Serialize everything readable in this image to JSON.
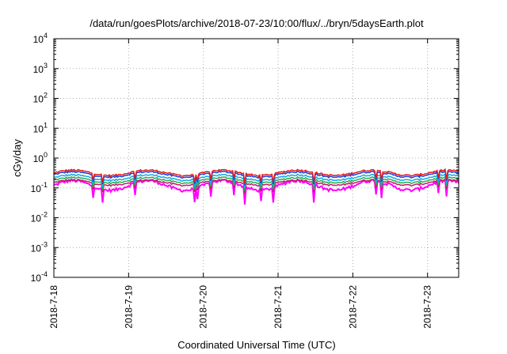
{
  "chart_data": {
    "type": "line",
    "title": "/data/run/goesPlots/archive/2018-07-23/10:00/flux/../bryn/5daysEarth.plot",
    "xlabel": "Coordinated Universal Time (UTC)",
    "ylabel": "cGy/day",
    "yscale": "log",
    "ylim": [
      0.0001,
      10000
    ],
    "xlim": [
      "2018-07-18",
      "2018-07-23 10:00"
    ],
    "grid": true,
    "y_ticks": [
      {
        "base": "10",
        "exp": "-4"
      },
      {
        "base": "10",
        "exp": "-3"
      },
      {
        "base": "10",
        "exp": "-2"
      },
      {
        "base": "10",
        "exp": "-1"
      },
      {
        "base": "10",
        "exp": "0"
      },
      {
        "base": "10",
        "exp": "1"
      },
      {
        "base": "10",
        "exp": "2"
      },
      {
        "base": "10",
        "exp": "3"
      },
      {
        "base": "10",
        "exp": "4"
      }
    ],
    "x_ticks": [
      "2018-7-18",
      "2018-7-19",
      "2018-7-20",
      "2018-7-21",
      "2018-7-22",
      "2018-7-23"
    ],
    "series": [
      {
        "color": "#e41a1c",
        "level": 0.32
      },
      {
        "color": "#1f3fd6",
        "level": 0.28
      },
      {
        "color": "#17a8e0",
        "level": 0.22
      },
      {
        "color": "#22b14c",
        "level": 0.18
      },
      {
        "color": "#c41a6a",
        "level": 0.15
      },
      {
        "color": "#ff00ff",
        "level": 0.12
      }
    ]
  }
}
